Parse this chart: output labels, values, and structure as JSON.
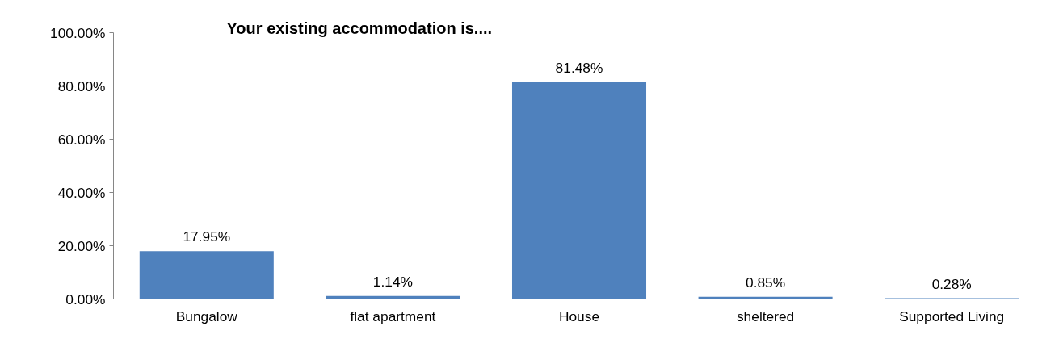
{
  "chart_data": {
    "type": "bar",
    "title": "Your existing accommodation is....",
    "categories": [
      "Bungalow",
      "flat apartment",
      "House",
      "sheltered",
      "Supported Living"
    ],
    "values": [
      17.95,
      1.14,
      81.48,
      0.85,
      0.28
    ],
    "color": "#4f81bd",
    "value_labels": [
      "17.95%",
      "1.14%",
      "81.48%",
      "0.85%",
      "0.28%"
    ],
    "ylim": [
      0,
      100
    ],
    "yticks": [
      {
        "value": 0,
        "label": "0.00%"
      },
      {
        "value": 20,
        "label": "20.00%"
      },
      {
        "value": 40,
        "label": "40.00%"
      },
      {
        "value": 60,
        "label": "60.00%"
      },
      {
        "value": 80,
        "label": "80.00%"
      },
      {
        "value": 100,
        "label": "100.00%"
      }
    ],
    "grid": false
  }
}
